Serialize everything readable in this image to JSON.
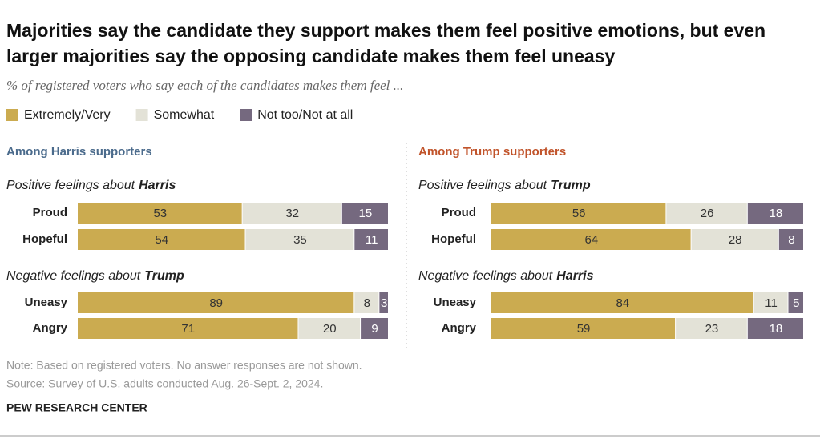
{
  "chart_data": {
    "type": "stacked-bar",
    "title": "Majorities say the candidate they support makes them feel positive emotions, but even larger majorities say the opposing candidate makes them feel uneasy",
    "subtitle": "% of registered voters who say each of the candidates makes them feel ...",
    "xlim": [
      0,
      100
    ],
    "series": [
      {
        "name": "Extremely/Very",
        "color": "#cbab50"
      },
      {
        "name": "Somewhat",
        "color": "#e3e2d7"
      },
      {
        "name": "Not too/Not at all",
        "color": "#75697f"
      }
    ],
    "panels": [
      {
        "title": "Among Harris supporters",
        "color": "#4b6b8c",
        "groups": [
          {
            "label": "Positive feelings about",
            "subject": "Harris",
            "categories": [
              "Proud",
              "Hopeful"
            ],
            "values": [
              [
                53,
                54
              ],
              [
                32,
                35
              ],
              [
                15,
                11
              ]
            ]
          },
          {
            "label": "Negative feelings about",
            "subject": "Trump",
            "categories": [
              "Uneasy",
              "Angry"
            ],
            "values": [
              [
                89,
                71
              ],
              [
                8,
                20
              ],
              [
                3,
                9
              ]
            ]
          }
        ]
      },
      {
        "title": "Among Trump supporters",
        "color": "#c1542b",
        "groups": [
          {
            "label": "Positive feelings about",
            "subject": "Trump",
            "categories": [
              "Proud",
              "Hopeful"
            ],
            "values": [
              [
                56,
                64
              ],
              [
                26,
                28
              ],
              [
                18,
                8
              ]
            ]
          },
          {
            "label": "Negative feelings about",
            "subject": "Harris",
            "categories": [
              "Uneasy",
              "Angry"
            ],
            "values": [
              [
                84,
                59
              ],
              [
                11,
                23
              ],
              [
                5,
                18
              ]
            ]
          }
        ]
      }
    ],
    "note": "Note: Based on registered voters. No answer responses are not shown.",
    "source": "Source: Survey of U.S. adults conducted Aug. 26-Sept. 2, 2024.",
    "footer": "PEW RESEARCH CENTER"
  }
}
